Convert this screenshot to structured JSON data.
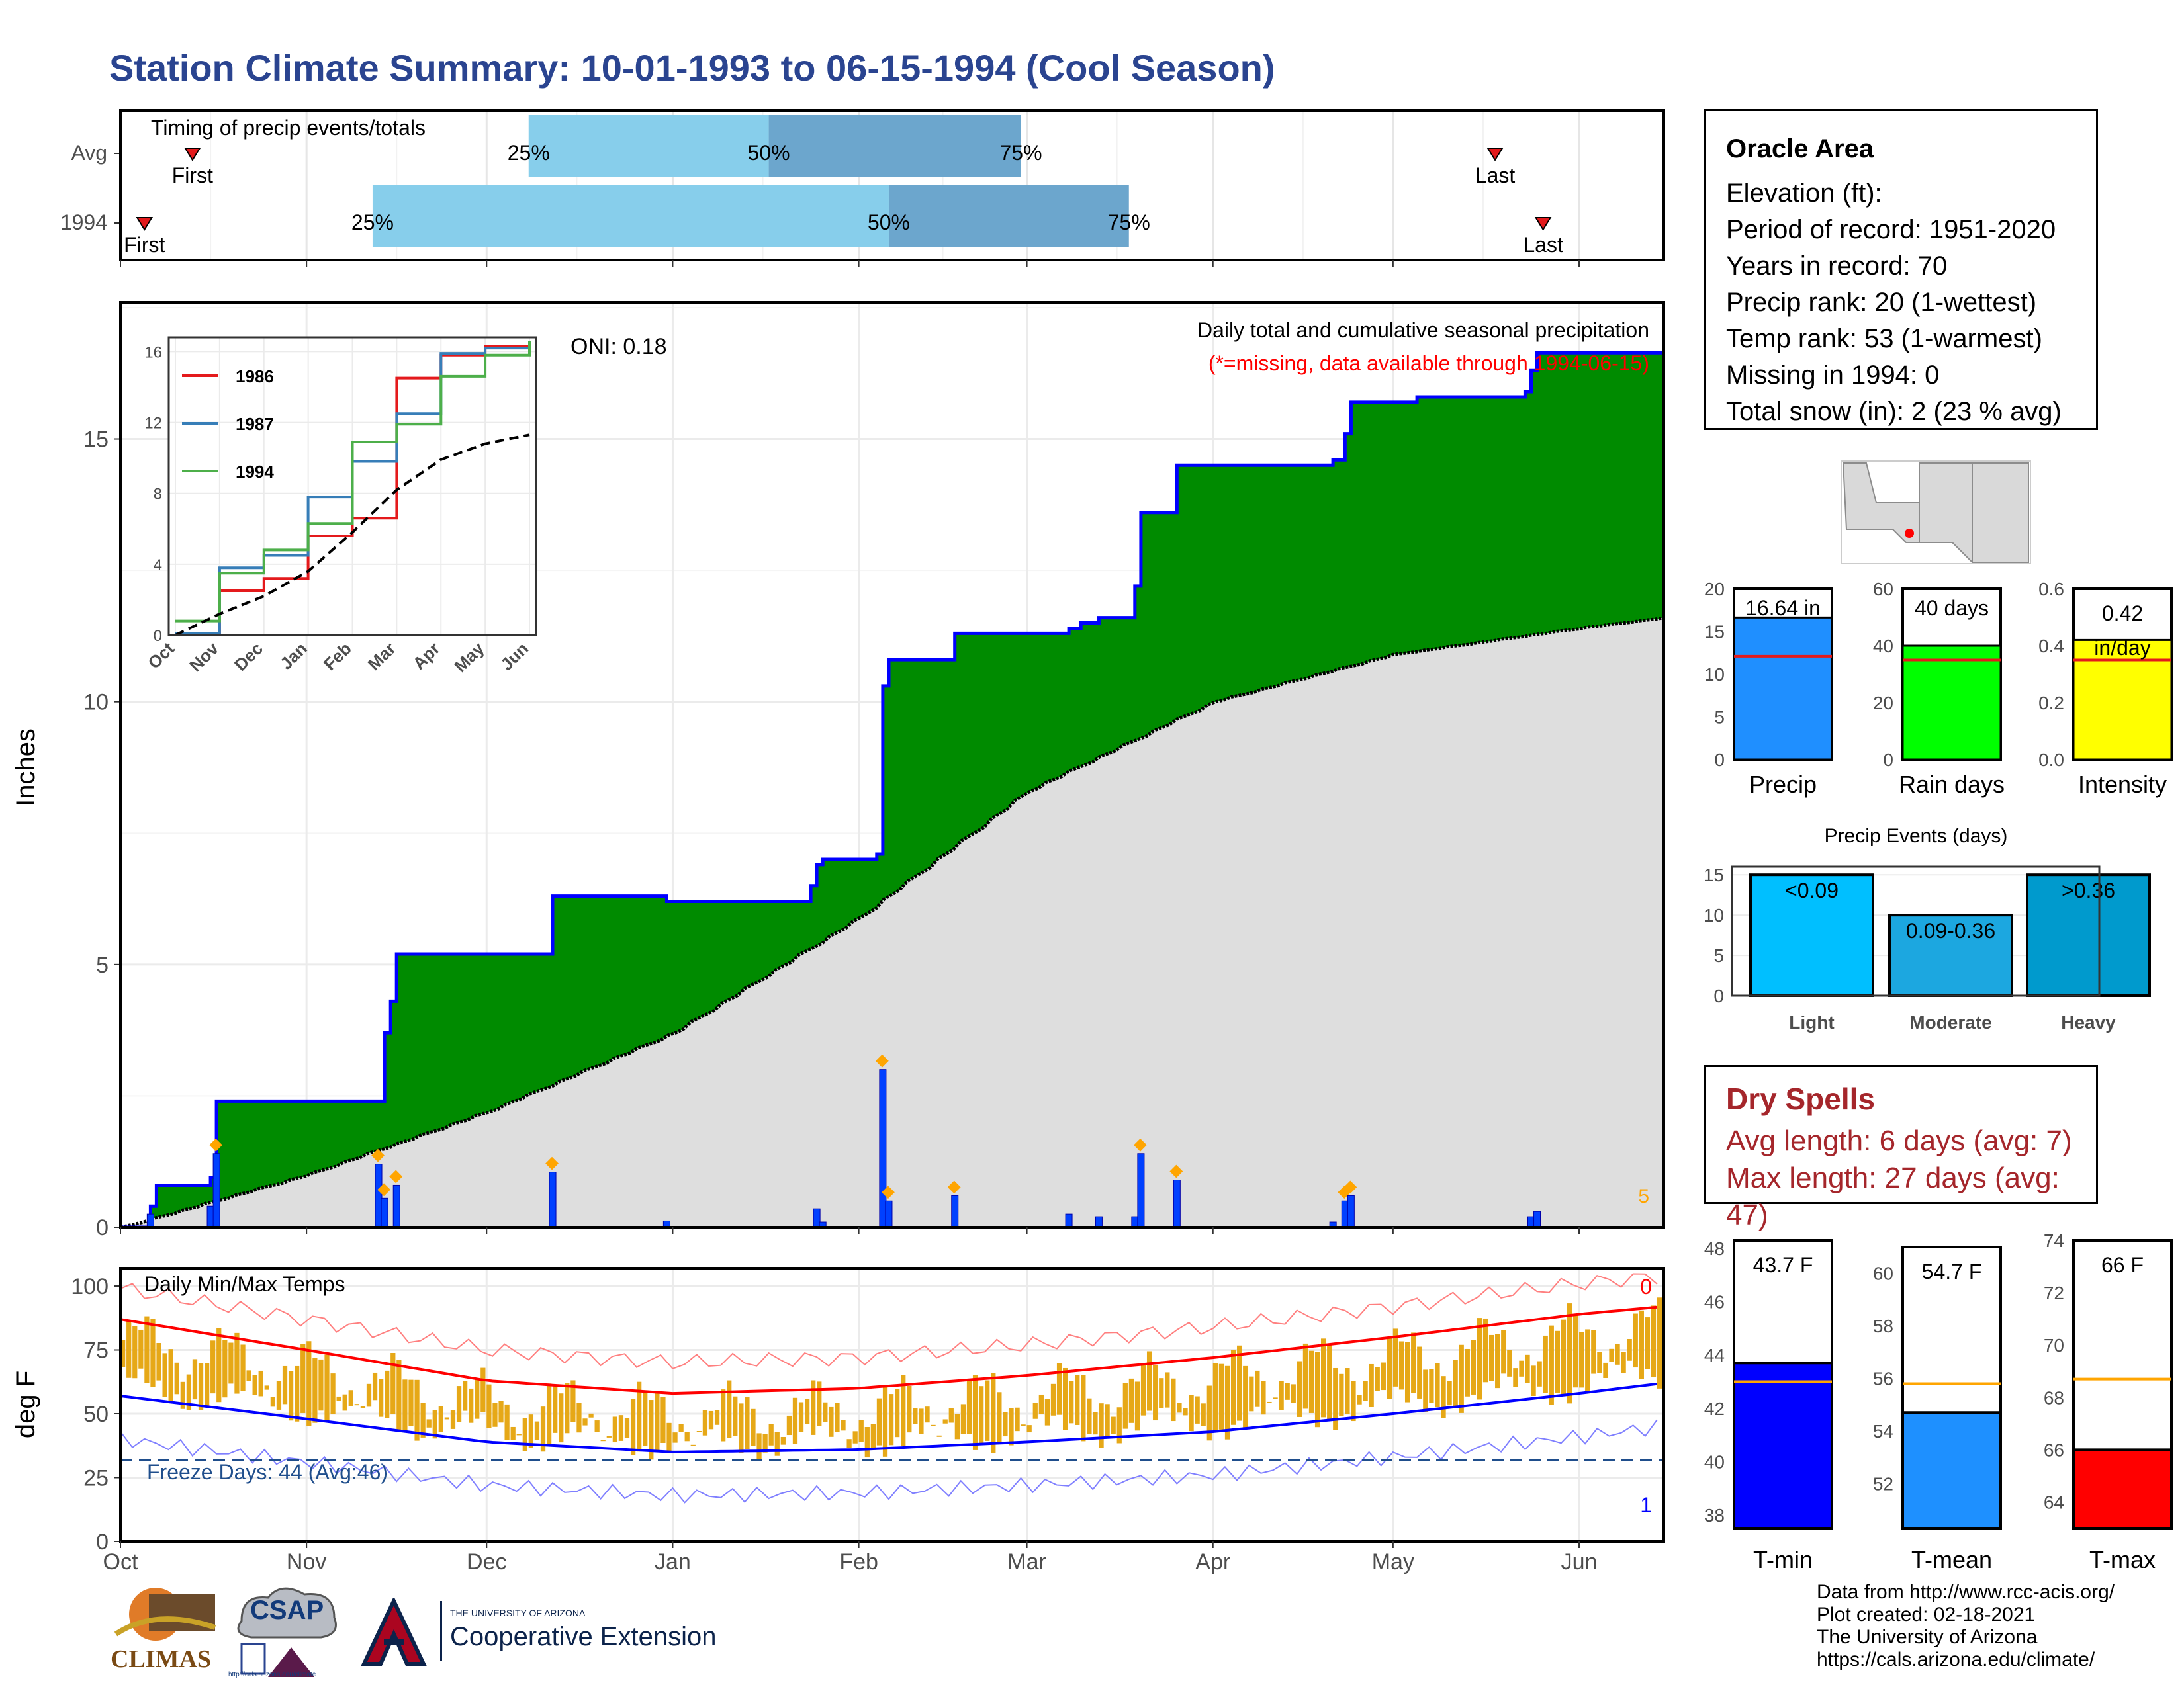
{
  "title": "Station Climate Summary: 10-01-1993 to 06-15-1994 (Cool Season)",
  "timing_panel": {
    "title": "Timing of precip events/totals",
    "rows": [
      {
        "label": "Avg",
        "first": "First",
        "last": "Last",
        "p25": "25%",
        "p50": "50%",
        "p75": "75%",
        "first_date": "1993-10-13",
        "last_date": "1994-05-18",
        "q25_date": "1993-12-08",
        "q50_date": "1994-01-17",
        "q75_date": "1994-02-28"
      },
      {
        "label": "1994",
        "first": "First",
        "last": "Last",
        "p25": "25%",
        "p50": "50%",
        "p75": "75%",
        "first_date": "1993-10-05",
        "last_date": "1994-05-26",
        "q25_date": "1993-11-12",
        "q50_date": "1994-02-06",
        "q75_date": "1994-03-18"
      }
    ]
  },
  "precip_panel": {
    "ylabel": "Inches",
    "oni": "ONI: 0.18",
    "subtitle": "Daily total and cumulative seasonal precipitation",
    "note": "(*=missing, data available through 1994-06-15)",
    "corner_count": "5",
    "yticks": [
      "0",
      "5",
      "10",
      "15"
    ]
  },
  "inset": {
    "legend": [
      "1986",
      "1987",
      "1994"
    ],
    "yticks": [
      "0",
      "4",
      "8",
      "12",
      "16"
    ],
    "months": [
      "Oct",
      "Nov",
      "Dec",
      "Jan",
      "Feb",
      "Mar",
      "Apr",
      "May",
      "Jun"
    ]
  },
  "temp_panel": {
    "ylabel": "deg F",
    "title": "Daily Min/Max Temps",
    "freeze": "Freeze Days: 44 (Avg:46)",
    "top_count": "0",
    "bottom_count": "1",
    "yticks": [
      "0",
      "25",
      "50",
      "75",
      "100"
    ]
  },
  "x_months": [
    "Oct",
    "Nov",
    "Dec",
    "Jan",
    "Feb",
    "Mar",
    "Apr",
    "May",
    "Jun"
  ],
  "station": {
    "name": "Oracle Area",
    "lines": [
      "Elevation (ft):",
      "Period of record: 1951-2020",
      "Years in record: 70",
      "Precip rank: 20 (1-wettest)",
      "Temp rank: 53 (1-warmest)",
      "Missing in 1994: 0",
      "Total snow (in): 2 (23 % avg)"
    ]
  },
  "mini_bars": [
    {
      "label": "Precip",
      "value_text": "16.64 in",
      "value": 16.64,
      "avg": 12.1,
      "ymax": 20,
      "ticks": [
        "0",
        "5",
        "10",
        "15",
        "20"
      ],
      "color": "#1f8fff"
    },
    {
      "label": "Rain days",
      "value_text": "40 days",
      "value": 40,
      "avg": 35,
      "ymax": 60,
      "ticks": [
        "0",
        "20",
        "40",
        "60"
      ],
      "color": "#00ff00"
    },
    {
      "label": "Intensity",
      "value_text": "0.42 in/day",
      "value": 0.42,
      "avg": 0.35,
      "ymax": 0.6,
      "ticks": [
        "0.0",
        "0.2",
        "0.4",
        "0.6"
      ],
      "color": "#ffff00"
    }
  ],
  "precip_events": {
    "title": "Precip Events (days)",
    "bars": [
      {
        "label": "Light",
        "range": "<0.09",
        "value": 15,
        "color": "#00bfff"
      },
      {
        "label": "Moderate",
        "range": "0.09-0.36",
        "value": 10,
        "color": "#1ca7e0"
      },
      {
        "label": "Heavy",
        "range": ">0.36",
        "value": 15,
        "color": "#009acd"
      }
    ],
    "ticks": [
      "0",
      "5",
      "10",
      "15"
    ]
  },
  "dry_spells": {
    "title": "Dry Spells",
    "avg": "Avg length: 6 days (avg: 7)",
    "max": "Max length: 27 days (avg: 47)"
  },
  "temp_bars": [
    {
      "label": "T-min",
      "value_text": "43.7 F",
      "value": 43.7,
      "avg": 43.0,
      "ymin": 37.5,
      "ymax": 48.3,
      "ticks": [
        "38",
        "40",
        "42",
        "44",
        "46",
        "48"
      ],
      "color": "#0000ff"
    },
    {
      "label": "T-mean",
      "value_text": "54.7 F",
      "value": 54.7,
      "avg": 55.8,
      "ymin": 50.3,
      "ymax": 61.0,
      "ticks": [
        "52",
        "54",
        "56",
        "58",
        "60"
      ],
      "color": "#1e90ff"
    },
    {
      "label": "T-max",
      "value_text": "66 F",
      "value": 66.0,
      "avg": 68.7,
      "ymin": 63.0,
      "ymax": 74.0,
      "ticks": [
        "64",
        "66",
        "68",
        "70",
        "72",
        "74"
      ],
      "color": "#ff0000"
    }
  ],
  "credits": [
    "Data from http://www.rcc-acis.org/",
    "Plot created: 02-18-2021",
    "The University of Arizona",
    "https://cals.arizona.edu/climate/"
  ],
  "logos": {
    "climas": "CLIMAS",
    "csap": "CSAP",
    "ua_small": "THE UNIVERSITY OF ARIZONA",
    "coop": "Cooperative Extension",
    "csap_url": "http://cals.arizona.edu/climate"
  },
  "chart_data": [
    {
      "type": "area",
      "title": "Daily total and cumulative seasonal precipitation",
      "ylabel": "Inches",
      "ylim": [
        0,
        17.6
      ],
      "series": [
        {
          "name": "cumulative",
          "points": [
            [
              "1993-10-01",
              0
            ],
            [
              "1993-10-06",
              0.4
            ],
            [
              "1993-10-07",
              0.8
            ],
            [
              "1993-10-16",
              0.95
            ],
            [
              "1993-10-17",
              2.4
            ],
            [
              "1993-11-13",
              2.4
            ],
            [
              "1993-11-14",
              3.7
            ],
            [
              "1993-11-15",
              4.3
            ],
            [
              "1993-11-16",
              5.2
            ],
            [
              "1993-12-11",
              5.2
            ],
            [
              "1993-12-12",
              6.3
            ],
            [
              "1993-12-30",
              6.3
            ],
            [
              "1993-12-31",
              6.2
            ],
            [
              "1994-01-24",
              6.5
            ],
            [
              "1994-01-25",
              6.9
            ],
            [
              "1994-01-26",
              7.0
            ],
            [
              "1994-02-04",
              7.1
            ],
            [
              "1994-02-05",
              10.3
            ],
            [
              "1994-02-06",
              10.8
            ],
            [
              "1994-02-17",
              11.3
            ],
            [
              "1994-03-08",
              11.4
            ],
            [
              "1994-03-10",
              11.5
            ],
            [
              "1994-03-13",
              11.6
            ],
            [
              "1994-03-19",
              12.2
            ],
            [
              "1994-03-20",
              13.6
            ],
            [
              "1994-03-26",
              14.5
            ],
            [
              "1994-04-21",
              14.6
            ],
            [
              "1994-04-23",
              15.1
            ],
            [
              "1994-04-24",
              15.7
            ],
            [
              "1994-05-05",
              15.8
            ],
            [
              "1994-05-09",
              15.8
            ],
            [
              "1994-05-23",
              15.9
            ],
            [
              "1994-05-24",
              16.3
            ],
            [
              "1994-05-25",
              16.64
            ],
            [
              "1994-06-15",
              16.64
            ]
          ]
        },
        {
          "name": "average",
          "points": [
            [
              "1993-10-01",
              0
            ],
            [
              "1993-11-01",
              1.0
            ],
            [
              "1993-12-01",
              2.2
            ],
            [
              "1994-01-01",
              3.7
            ],
            [
              "1994-02-01",
              5.9
            ],
            [
              "1994-03-01",
              8.3
            ],
            [
              "1994-04-01",
              10.0
            ],
            [
              "1994-05-01",
              10.9
            ],
            [
              "1994-06-01",
              11.4
            ],
            [
              "1994-06-15",
              11.6
            ]
          ]
        },
        {
          "name": "daily",
          "points": [
            [
              "1993-10-06",
              0.25
            ],
            [
              "1993-10-16",
              0.4
            ],
            [
              "1993-10-17",
              1.4
            ],
            [
              "1993-11-13",
              1.2
            ],
            [
              "1993-11-14",
              0.55
            ],
            [
              "1993-11-16",
              0.8
            ],
            [
              "1993-12-12",
              1.05
            ],
            [
              "1993-12-31",
              0.12
            ],
            [
              "1994-01-25",
              0.35
            ],
            [
              "1994-01-26",
              0.1
            ],
            [
              "1994-02-05",
              3.0
            ],
            [
              "1994-02-06",
              0.5
            ],
            [
              "1994-02-17",
              0.6
            ],
            [
              "1994-03-08",
              0.25
            ],
            [
              "1994-03-13",
              0.2
            ],
            [
              "1994-03-19",
              0.2
            ],
            [
              "1994-03-20",
              1.4
            ],
            [
              "1994-03-26",
              0.9
            ],
            [
              "1994-04-21",
              0.1
            ],
            [
              "1994-04-23",
              0.5
            ],
            [
              "1994-04-24",
              0.6
            ],
            [
              "1994-05-24",
              0.2
            ],
            [
              "1994-05-25",
              0.3
            ]
          ]
        }
      ]
    },
    {
      "type": "line",
      "title": "",
      "legend": [
        "1986",
        "1987",
        "1994"
      ],
      "x": [
        "Oct",
        "Nov",
        "Dec",
        "Jan",
        "Feb",
        "Mar",
        "Apr",
        "May",
        "Jun"
      ],
      "ylim": [
        0,
        16.5
      ],
      "series": [
        {
          "name": "1986",
          "values": [
            0.1,
            2.5,
            3.2,
            5.6,
            6.6,
            14.5,
            15.8,
            16.3,
            16.4
          ]
        },
        {
          "name": "1987",
          "values": [
            0.1,
            3.8,
            4.5,
            7.8,
            9.8,
            12.5,
            15.9,
            16.2,
            16.5
          ]
        },
        {
          "name": "1994",
          "values": [
            0.8,
            3.5,
            4.8,
            6.3,
            10.9,
            11.9,
            14.6,
            15.8,
            16.6
          ]
        },
        {
          "name": "",
          "values": [
            0,
            1.2,
            2.2,
            3.6,
            5.8,
            8.2,
            9.9,
            10.8,
            11.3
          ]
        }
      ]
    },
    {
      "type": "line",
      "title": "Daily Min/Max Temps",
      "ylabel": "deg F",
      "ylim": [
        0,
        107
      ],
      "series": [
        {
          "name": "avg max",
          "points": [
            [
              "1993-10-01",
              87
            ],
            [
              "1993-11-01",
              75
            ],
            [
              "1993-12-01",
              63
            ],
            [
              "1994-01-01",
              58
            ],
            [
              "1994-02-01",
              60
            ],
            [
              "1994-03-01",
              65
            ],
            [
              "1994-04-01",
              72
            ],
            [
              "1994-05-01",
              80
            ],
            [
              "1994-06-01",
              89
            ],
            [
              "1994-06-15",
              92
            ]
          ]
        },
        {
          "name": "avg min",
          "points": [
            [
              "1993-10-01",
              57
            ],
            [
              "1993-11-01",
              48
            ],
            [
              "1993-12-01",
              39
            ],
            [
              "1994-01-01",
              35
            ],
            [
              "1994-02-01",
              36
            ],
            [
              "1994-03-01",
              39
            ],
            [
              "1994-04-01",
              43
            ],
            [
              "1994-05-01",
              50
            ],
            [
              "1994-06-01",
              58
            ],
            [
              "1994-06-15",
              62
            ]
          ]
        }
      ]
    },
    {
      "type": "bar",
      "categories": [
        "Precip"
      ],
      "values": [
        16.64
      ],
      "ylim": [
        0,
        20
      ]
    },
    {
      "type": "bar",
      "categories": [
        "Rain days"
      ],
      "values": [
        40
      ],
      "ylim": [
        0,
        60
      ]
    },
    {
      "type": "bar",
      "categories": [
        "Intensity"
      ],
      "values": [
        0.42
      ],
      "ylim": [
        0,
        0.6
      ]
    },
    {
      "type": "bar",
      "title": "Precip Events (days)",
      "categories": [
        "Light",
        "Moderate",
        "Heavy"
      ],
      "values": [
        15,
        10,
        15
      ]
    },
    {
      "type": "bar",
      "categories": [
        "T-min"
      ],
      "values": [
        43.7
      ]
    },
    {
      "type": "bar",
      "categories": [
        "T-mean"
      ],
      "values": [
        54.7
      ]
    },
    {
      "type": "bar",
      "categories": [
        "T-max"
      ],
      "values": [
        66.0
      ]
    }
  ]
}
